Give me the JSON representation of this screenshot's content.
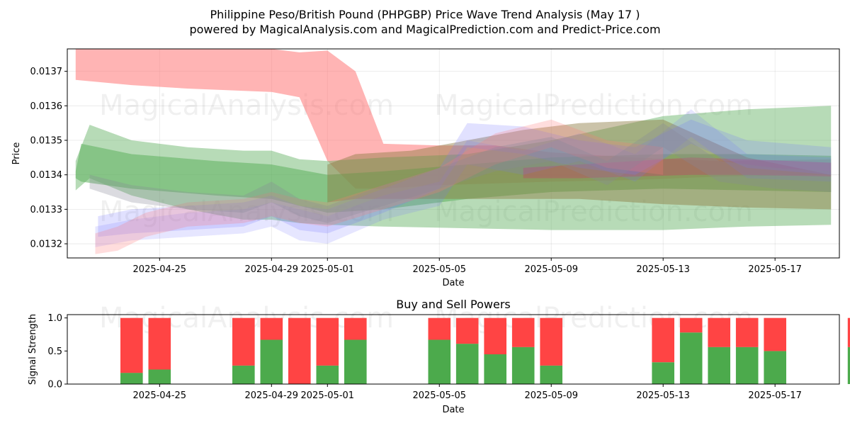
{
  "title_line1": "Philippine Peso/British Pound (PHPGBP) Price Wave Trend Analysis (May 17 )",
  "title_line2": "powered by MagicalAnalysis.com and MagicalPrediction.com and Predict-Price.com",
  "watermarks": [
    "MagicalAnalysis.com",
    "MagicalPrediction.com"
  ],
  "colors": {
    "red": "#ff4444",
    "green": "#4caa4c",
    "blue": "#7777ff",
    "band_red": "#ff7777",
    "band_green": "#5fb05f",
    "band_brown": "#8b7a40",
    "band_pink": "#cc3366",
    "band_gray": "#888899"
  },
  "chart_data": [
    {
      "type": "area",
      "title": "",
      "xlabel": "Date",
      "ylabel": "Price",
      "x_range_days": [
        -3.3,
        24.3
      ],
      "ylim": [
        0.013159,
        0.013765
      ],
      "x_tick_labels": [
        "2025-04-25",
        "2025-04-29",
        "2025-05-01",
        "2025-05-05",
        "2025-05-09",
        "2025-05-13",
        "2025-05-17"
      ],
      "x_tick_days": [
        0,
        4,
        6,
        10,
        14,
        18,
        22
      ],
      "y_ticks": [
        0.0132,
        0.0133,
        0.0134,
        0.0135,
        0.0136,
        0.0137
      ],
      "y_tick_labels": [
        "0.0132",
        "0.0133",
        "0.0134",
        "0.0135",
        "0.0136",
        "0.0137"
      ],
      "grid": true,
      "series": [
        {
          "name": "red-band",
          "color": "band_red",
          "opacity": 0.55,
          "x": [
            -3,
            -1,
            1,
            4,
            5,
            6,
            7,
            8,
            10,
            12,
            14,
            17,
            20,
            24
          ],
          "upper": [
            0.013775,
            0.01377,
            0.013768,
            0.013765,
            0.013755,
            0.01376,
            0.0137,
            0.01349,
            0.013485,
            0.013485,
            0.013465,
            0.01345,
            0.01344,
            0.013445
          ],
          "lower": [
            0.013675,
            0.01366,
            0.01365,
            0.01364,
            0.013625,
            0.01344,
            0.01336,
            0.01336,
            0.01337,
            0.013375,
            0.01338,
            0.013385,
            0.013395,
            0.0134
          ]
        },
        {
          "name": "green-band-wide",
          "color": "band_green",
          "opacity": 0.45,
          "x": [
            -3,
            -2.5,
            -1,
            1,
            3,
            4,
            5,
            6,
            8,
            11,
            14,
            18,
            21,
            24
          ],
          "upper": [
            0.01344,
            0.013545,
            0.0135,
            0.01348,
            0.01347,
            0.01347,
            0.013445,
            0.01344,
            0.01345,
            0.01346,
            0.0135,
            0.01357,
            0.01359,
            0.0136
          ],
          "lower": [
            0.013355,
            0.01339,
            0.01334,
            0.0133,
            0.01327,
            0.01327,
            0.01326,
            0.013255,
            0.01325,
            0.013245,
            0.01324,
            0.01324,
            0.01325,
            0.013255
          ]
        },
        {
          "name": "green-band-dark",
          "color": "band_green",
          "opacity": 0.55,
          "x": [
            -3,
            -2.8,
            -1,
            2,
            4,
            6,
            8,
            11,
            14,
            18,
            21,
            24
          ],
          "upper": [
            0.01341,
            0.01349,
            0.01346,
            0.01344,
            0.01343,
            0.0134,
            0.01341,
            0.01343,
            0.01345,
            0.01346,
            0.01346,
            0.013455
          ],
          "lower": [
            0.01339,
            0.01338,
            0.01336,
            0.01334,
            0.01333,
            0.01329,
            0.0133,
            0.01333,
            0.01335,
            0.01336,
            0.013355,
            0.01335
          ]
        },
        {
          "name": "brown-band",
          "color": "band_brown",
          "opacity": 0.45,
          "x": [
            6,
            7,
            9,
            11,
            13,
            15,
            18,
            21,
            24
          ],
          "upper": [
            0.01343,
            0.01346,
            0.01347,
            0.0135,
            0.01353,
            0.01355,
            0.01356,
            0.01345,
            0.0134
          ],
          "lower": [
            0.01332,
            0.01333,
            0.01333,
            0.01333,
            0.01333,
            0.01333,
            0.013315,
            0.013305,
            0.0133
          ]
        },
        {
          "name": "pink-band",
          "color": "band_pink",
          "opacity": 0.35,
          "x": [
            13,
            15,
            17,
            19,
            21,
            24
          ],
          "upper": [
            0.01342,
            0.01343,
            0.01344,
            0.01345,
            0.013445,
            0.013435
          ],
          "lower": [
            0.01339,
            0.01339,
            0.013395,
            0.0134,
            0.0134,
            0.013395
          ]
        },
        {
          "name": "blue-band-1",
          "color": "blue",
          "opacity": 0.22,
          "x": [
            -2.2,
            -1,
            1,
            3,
            4,
            5,
            6,
            8,
            10,
            11,
            13,
            15,
            17,
            19,
            21,
            24
          ],
          "upper": [
            0.01328,
            0.0133,
            0.01331,
            0.01332,
            0.01334,
            0.01331,
            0.0133,
            0.01336,
            0.01342,
            0.01355,
            0.01354,
            0.0135,
            0.01348,
            0.01356,
            0.0135,
            0.01348
          ],
          "lower": [
            0.01322,
            0.01323,
            0.01324,
            0.01325,
            0.01328,
            0.01324,
            0.01323,
            0.01329,
            0.01336,
            0.01348,
            0.01346,
            0.01342,
            0.0134,
            0.01349,
            0.01342,
            0.0134
          ]
        },
        {
          "name": "blue-band-2",
          "color": "blue",
          "opacity": 0.18,
          "x": [
            -2.3,
            -1,
            1,
            3,
            4,
            5,
            6,
            8,
            10,
            11,
            13,
            15,
            17,
            19,
            21,
            24
          ],
          "upper": [
            0.01325,
            0.01327,
            0.01329,
            0.0133,
            0.01332,
            0.0133,
            0.01328,
            0.01334,
            0.01338,
            0.0135,
            0.01347,
            0.01352,
            0.01346,
            0.01359,
            0.01346,
            0.01345
          ],
          "lower": [
            0.01319,
            0.01321,
            0.01322,
            0.01323,
            0.01325,
            0.01321,
            0.0132,
            0.01327,
            0.01331,
            0.01343,
            0.0134,
            0.01344,
            0.01338,
            0.01351,
            0.01339,
            0.01338
          ]
        },
        {
          "name": "red-band-small",
          "color": "band_red",
          "opacity": 0.25,
          "x": [
            -2.3,
            -1.5,
            -0.5,
            1,
            3,
            4,
            5,
            6,
            8,
            10,
            12,
            14,
            16,
            18
          ],
          "upper": [
            0.01323,
            0.01325,
            0.01329,
            0.01332,
            0.01333,
            0.01335,
            0.01333,
            0.01332,
            0.01337,
            0.01342,
            0.01352,
            0.01356,
            0.0135,
            0.01348
          ],
          "lower": [
            0.01317,
            0.01318,
            0.01322,
            0.01325,
            0.01326,
            0.01328,
            0.01326,
            0.01325,
            0.0133,
            0.01335,
            0.01343,
            0.01348,
            0.01342,
            0.0134
          ]
        },
        {
          "name": "gray-band",
          "color": "band_gray",
          "opacity": 0.3,
          "x": [
            -2.5,
            -1,
            1,
            3,
            4,
            5,
            6,
            8,
            10,
            12,
            14,
            16,
            18,
            20,
            22,
            24
          ],
          "upper": [
            0.0134,
            0.01337,
            0.01335,
            0.01334,
            0.01338,
            0.01333,
            0.01331,
            0.01337,
            0.01342,
            0.01348,
            0.01351,
            0.01344,
            0.01355,
            0.01344,
            0.01342,
            0.01341
          ],
          "lower": [
            0.01336,
            0.01332,
            0.0133,
            0.01329,
            0.01332,
            0.01328,
            0.01326,
            0.01331,
            0.01336,
            0.01341,
            0.01344,
            0.01337,
            0.01348,
            0.01338,
            0.01336,
            0.01335
          ]
        }
      ]
    },
    {
      "type": "bar",
      "title": "Buy and Sell Powers",
      "xlabel": "Date",
      "ylabel": "Signal Strength",
      "x_range_days": [
        -3.3,
        24.3
      ],
      "ylim": [
        0,
        1.05
      ],
      "x_tick_labels": [
        "2025-04-25",
        "2025-04-29",
        "2025-05-01",
        "2025-05-05",
        "2025-05-09",
        "2025-05-13",
        "2025-05-17"
      ],
      "x_tick_days": [
        0,
        4,
        6,
        10,
        14,
        18,
        22
      ],
      "y_ticks": [
        0.0,
        0.5,
        1.0
      ],
      "y_tick_labels": [
        "0.0",
        "0.5",
        "1.0"
      ],
      "grid": false,
      "series": [
        {
          "name": "Buy",
          "color": "green",
          "x": [
            -1,
            0,
            3,
            4,
            5,
            6,
            7,
            10,
            11,
            12,
            13,
            14,
            18,
            19,
            20,
            21,
            22,
            25
          ],
          "values": [
            0.17,
            0.22,
            0.28,
            0.67,
            0.0,
            0.28,
            0.67,
            0.67,
            0.61,
            0.45,
            0.56,
            0.28,
            0.33,
            0.78,
            0.56,
            0.56,
            0.5,
            0.56
          ]
        },
        {
          "name": "Sell",
          "color": "red",
          "x": [
            -1,
            0,
            3,
            4,
            5,
            6,
            7,
            10,
            11,
            12,
            13,
            14,
            18,
            19,
            20,
            21,
            22,
            25
          ],
          "values": [
            0.83,
            0.78,
            0.72,
            0.33,
            1.0,
            0.72,
            0.33,
            0.33,
            0.39,
            0.55,
            0.44,
            0.72,
            0.67,
            0.22,
            0.44,
            0.44,
            0.5,
            0.44
          ]
        }
      ]
    }
  ]
}
